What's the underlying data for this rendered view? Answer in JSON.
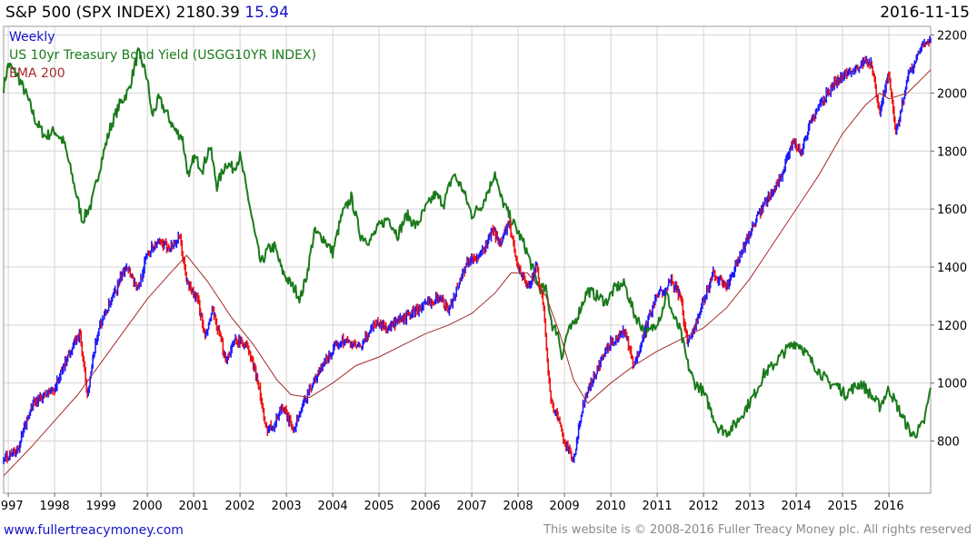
{
  "header": {
    "title": "S&P 500 (SPX INDEX)",
    "last": "2180.39",
    "change": "15.94",
    "date": "2016-11-15"
  },
  "legend": {
    "frequency": "Weekly",
    "yield_series": "US 10yr Treasury Bond Yield (USGG10YR INDEX)",
    "ema": "EMA 200"
  },
  "footer": {
    "site": "www.fullertreacymoney.com",
    "copyright": "This website is © 2008-2016 Fuller Treacy Money plc. All rights reserved"
  },
  "colors": {
    "background": "#ffffff",
    "grid": "#d4d4d4",
    "up_bars": "#1a1aff",
    "down_bars": "#ee1111",
    "yield_line": "#1a7a1a",
    "ema_line": "#a52a2a",
    "legend_weekly": "#1414c8"
  },
  "chart_data": {
    "type": "line",
    "title": "S&P 500 (SPX INDEX) 2180.39 15.94",
    "frequency": "Weekly",
    "x_ticks": [
      "1997",
      "1998",
      "1999",
      "2000",
      "2001",
      "2002",
      "2003",
      "2004",
      "2005",
      "2006",
      "2007",
      "2008",
      "2009",
      "2010",
      "2011",
      "2012",
      "2013",
      "2014",
      "2015",
      "2016"
    ],
    "x_range": [
      1996.9,
      2016.9
    ],
    "y_ticks": [
      800,
      1000,
      1200,
      1400,
      1600,
      1800,
      2000,
      2200
    ],
    "y_range": [
      620,
      2230
    ],
    "series": [
      {
        "name": "S&P 500 (SPX INDEX)",
        "style": "price bars",
        "x": [
          1996.9,
          1997.2,
          1997.5,
          1997.8,
          1998.0,
          1998.3,
          1998.55,
          1998.7,
          1998.95,
          1999.3,
          1999.55,
          1999.8,
          2000.0,
          2000.2,
          2000.5,
          2000.7,
          2000.85,
          2001.1,
          2001.25,
          2001.4,
          2001.7,
          2001.9,
          2002.15,
          2002.4,
          2002.55,
          2002.75,
          2002.9,
          2003.15,
          2003.5,
          2003.9,
          2004.2,
          2004.6,
          2004.9,
          2005.2,
          2005.6,
          2005.9,
          2006.3,
          2006.5,
          2006.9,
          2007.2,
          2007.45,
          2007.6,
          2007.8,
          2008.0,
          2008.2,
          2008.4,
          2008.55,
          2008.7,
          2008.85,
          2009.0,
          2009.2,
          2009.4,
          2009.8,
          2010.0,
          2010.3,
          2010.5,
          2010.8,
          2011.0,
          2011.3,
          2011.5,
          2011.65,
          2011.9,
          2012.2,
          2012.5,
          2012.8,
          2013.0,
          2013.4,
          2013.7,
          2013.95,
          2014.1,
          2014.3,
          2014.6,
          2014.8,
          2015.0,
          2015.3,
          2015.6,
          2015.8,
          2016.0,
          2016.15,
          2016.45,
          2016.55,
          2016.7,
          2016.9
        ],
        "values": [
          740,
          770,
          920,
          960,
          980,
          1100,
          1170,
          960,
          1190,
          1310,
          1410,
          1320,
          1450,
          1480,
          1470,
          1500,
          1350,
          1280,
          1150,
          1250,
          1080,
          1150,
          1130,
          1000,
          840,
          860,
          920,
          840,
          980,
          1090,
          1150,
          1120,
          1210,
          1190,
          1230,
          1260,
          1300,
          1250,
          1420,
          1440,
          1530,
          1480,
          1550,
          1400,
          1330,
          1400,
          1260,
          940,
          880,
          800,
          730,
          930,
          1080,
          1140,
          1180,
          1050,
          1220,
          1300,
          1350,
          1300,
          1140,
          1230,
          1380,
          1330,
          1440,
          1520,
          1640,
          1720,
          1840,
          1790,
          1900,
          1980,
          2030,
          2060,
          2090,
          2110,
          1930,
          2070,
          1860,
          2080,
          2100,
          2170,
          2180
        ]
      },
      {
        "name": "EMA 200",
        "x": [
          1996.9,
          1997.5,
          1998.0,
          1998.5,
          1999.0,
          1999.5,
          2000.0,
          2000.5,
          2000.85,
          2001.3,
          2001.8,
          2002.3,
          2002.8,
          2003.1,
          2003.5,
          2004.0,
          2004.5,
          2005.0,
          2005.5,
          2006.0,
          2006.5,
          2007.0,
          2007.5,
          2007.85,
          2008.2,
          2008.6,
          2008.9,
          2009.2,
          2009.5,
          2010.0,
          2010.5,
          2011.0,
          2011.5,
          2012.0,
          2012.5,
          2013.0,
          2013.5,
          2014.0,
          2014.5,
          2015.0,
          2015.5,
          2015.8,
          2016.0,
          2016.4,
          2016.9
        ],
        "values": [
          680,
          780,
          870,
          960,
          1070,
          1180,
          1290,
          1380,
          1440,
          1350,
          1230,
          1130,
          1010,
          960,
          950,
          1000,
          1060,
          1090,
          1130,
          1170,
          1200,
          1240,
          1310,
          1380,
          1380,
          1300,
          1170,
          1010,
          930,
          1000,
          1060,
          1110,
          1150,
          1190,
          1260,
          1360,
          1480,
          1600,
          1720,
          1860,
          1960,
          2000,
          1980,
          2000,
          2080
        ]
      },
      {
        "name": "US 10yr Treasury Bond Yield (USGG10YR INDEX)",
        "scale": "relative (no axis shown)",
        "x": [
          1996.9,
          1997.0,
          1997.2,
          1997.4,
          1997.6,
          1997.8,
          1998.0,
          1998.2,
          1998.4,
          1998.6,
          1998.8,
          1999.0,
          1999.2,
          1999.4,
          1999.6,
          1999.8,
          1999.9,
          2000.0,
          2000.1,
          2000.25,
          2000.45,
          2000.6,
          2000.75,
          2000.9,
          2001.0,
          2001.2,
          2001.35,
          2001.5,
          2001.7,
          2001.85,
          2002.0,
          2002.1,
          2002.2,
          2002.3,
          2002.45,
          2002.6,
          2002.75,
          2002.9,
          2003.05,
          2003.2,
          2003.3,
          2003.45,
          2003.6,
          2003.8,
          2004.0,
          2004.2,
          2004.4,
          2004.6,
          2004.8,
          2005.0,
          2005.2,
          2005.4,
          2005.6,
          2005.8,
          2006.0,
          2006.2,
          2006.4,
          2006.5,
          2006.6,
          2006.8,
          2007.0,
          2007.2,
          2007.4,
          2007.5,
          2007.6,
          2007.8,
          2008.0,
          2008.15,
          2008.3,
          2008.45,
          2008.6,
          2008.75,
          2008.85,
          2008.95,
          2009.05,
          2009.2,
          2009.35,
          2009.5,
          2009.7,
          2009.9,
          2010.1,
          2010.3,
          2010.5,
          2010.65,
          2010.8,
          2010.9,
          2011.1,
          2011.2,
          2011.35,
          2011.5,
          2011.65,
          2011.8,
          2011.95,
          2012.1,
          2012.3,
          2012.5,
          2012.7,
          2012.9,
          2013.1,
          2013.3,
          2013.5,
          2013.7,
          2013.95,
          2014.1,
          2014.3,
          2014.5,
          2014.7,
          2014.9,
          2015.05,
          2015.2,
          2015.4,
          2015.6,
          2015.8,
          2016.0,
          2016.15,
          2016.3,
          2016.5,
          2016.6,
          2016.75,
          2016.9
        ],
        "values": [
          2020,
          2100,
          2060,
          1990,
          1900,
          1850,
          1870,
          1830,
          1700,
          1560,
          1620,
          1760,
          1880,
          1960,
          2010,
          2140,
          2100,
          2050,
          1920,
          1980,
          1920,
          1870,
          1850,
          1700,
          1780,
          1740,
          1820,
          1680,
          1760,
          1740,
          1780,
          1700,
          1620,
          1530,
          1410,
          1460,
          1470,
          1390,
          1350,
          1320,
          1290,
          1380,
          1520,
          1500,
          1450,
          1580,
          1640,
          1510,
          1490,
          1540,
          1570,
          1510,
          1580,
          1540,
          1600,
          1650,
          1620,
          1670,
          1720,
          1670,
          1580,
          1610,
          1680,
          1730,
          1650,
          1580,
          1520,
          1470,
          1400,
          1330,
          1320,
          1190,
          1180,
          1090,
          1170,
          1200,
          1260,
          1320,
          1300,
          1280,
          1330,
          1340,
          1240,
          1200,
          1170,
          1190,
          1240,
          1310,
          1230,
          1180,
          1070,
          1000,
          980,
          930,
          850,
          830,
          860,
          910,
          960,
          1030,
          1060,
          1100,
          1140,
          1130,
          1080,
          1040,
          1000,
          990,
          960,
          980,
          1000,
          960,
          920,
          980,
          930,
          880,
          820,
          830,
          860,
          980
        ]
      }
    ]
  }
}
